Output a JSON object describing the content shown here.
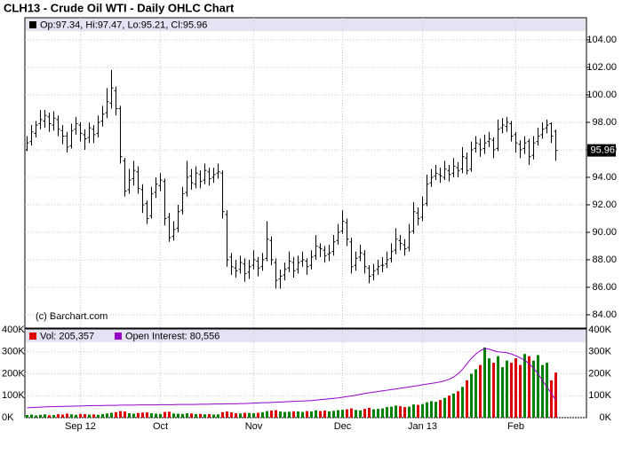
{
  "chart_data": {
    "type": "ohlc",
    "title": "CLH13 - Crude Oil WTI - Daily OHLC Chart",
    "info": "Op:97.34, Hi:97.47, Lo:95.21, Cl:95.96",
    "copyright": "(c) Barchart.com",
    "color": "#000000",
    "grid": true,
    "categories": [
      null,
      null,
      null,
      null,
      null,
      null,
      null,
      null,
      null,
      null,
      null,
      null,
      "Sep 12",
      null,
      null,
      null,
      null,
      null,
      null,
      null,
      null,
      null,
      null,
      null,
      null,
      null,
      null,
      null,
      null,
      null,
      "Oct",
      null,
      null,
      null,
      null,
      null,
      null,
      null,
      null,
      null,
      null,
      null,
      null,
      null,
      null,
      null,
      null,
      null,
      null,
      null,
      null,
      "Nov",
      null,
      null,
      null,
      null,
      null,
      null,
      null,
      null,
      null,
      null,
      null,
      null,
      null,
      null,
      null,
      null,
      null,
      null,
      null,
      "Dec",
      null,
      null,
      null,
      null,
      null,
      null,
      null,
      null,
      null,
      null,
      null,
      null,
      null,
      null,
      null,
      null,
      null,
      "Jan 13",
      null,
      null,
      null,
      null,
      null,
      null,
      null,
      null,
      null,
      null,
      null,
      null,
      null,
      null,
      null,
      null,
      null,
      null,
      null,
      null,
      "Feb",
      null,
      null,
      null,
      null,
      null,
      null,
      null,
      null,
      null
    ],
    "open": [
      96.0,
      96.6,
      97.2,
      97.9,
      98.1,
      98.4,
      97.8,
      98.2,
      97.4,
      97.0,
      96.3,
      97.5,
      97.8,
      97.1,
      96.9,
      97.5,
      97.2,
      98.1,
      98.7,
      99.4,
      100.3,
      99.0,
      95.2,
      93.1,
      93.9,
      94.4,
      93.1,
      92.1,
      91.2,
      92.9,
      93.4,
      93.7,
      91.1,
      89.7,
      90.3,
      91.6,
      92.9,
      94.1,
      93.5,
      94.2,
      93.8,
      94.4,
      94.0,
      94.3,
      94.3,
      91.3,
      88.2,
      87.4,
      87.3,
      87.7,
      87.1,
      87.6,
      87.9,
      87.5,
      88.1,
      89.4,
      87.8,
      86.6,
      86.9,
      87.4,
      87.8,
      87.3,
      87.9,
      87.9,
      87.6,
      88.3,
      88.9,
      88.7,
      88.4,
      88.6,
      89.4,
      90.1,
      90.7,
      89.3,
      87.6,
      88.2,
      88.4,
      87.4,
      86.9,
      87.3,
      87.6,
      87.7,
      88.1,
      88.7,
      89.4,
      89.1,
      88.9,
      90.1,
      91.4,
      91.1,
      92.1,
      93.6,
      94.1,
      94.2,
      94.0,
      94.5,
      94.3,
      94.7,
      94.6,
      95.4,
      94.6,
      96.1,
      96.4,
      96.1,
      96.6,
      96.7,
      96.1,
      97.6,
      97.7,
      97.9,
      97.1,
      96.4,
      96.1,
      96.6,
      95.6,
      96.6,
      97.1,
      97.6,
      97.9,
      97.34
    ],
    "high": [
      97.0,
      97.8,
      98.1,
      98.9,
      98.9,
      98.7,
      98.8,
      98.5,
      97.8,
      97.3,
      97.9,
      98.4,
      98.0,
      97.5,
      98.0,
      97.8,
      98.5,
      99.2,
      100.5,
      101.8,
      100.6,
      99.2,
      95.4,
      94.6,
      95.2,
      94.8,
      93.5,
      92.3,
      93.3,
      94.0,
      94.3,
      93.9,
      91.4,
      90.8,
      92.0,
      93.3,
      95.2,
      94.6,
      94.8,
      94.5,
      95.0,
      94.7,
      94.7,
      95.0,
      94.5,
      91.6,
      88.5,
      88.0,
      88.3,
      88.1,
      88.0,
      88.7,
      88.2,
      88.5,
      90.8,
      89.7,
      88.1,
      87.3,
      87.8,
      88.6,
      88.2,
      88.3,
      88.6,
      88.1,
      88.7,
      89.8,
      89.2,
      89.0,
      89.1,
      89.8,
      90.6,
      91.6,
      91.0,
      89.6,
      88.6,
      89.1,
      88.7,
      87.6,
      87.7,
      88.0,
      88.2,
      88.6,
      89.2,
      90.3,
      89.8,
      89.5,
      90.6,
      92.2,
      91.8,
      92.6,
      94.2,
      94.6,
      94.9,
      94.7,
      95.2,
      94.9,
      95.4,
      95.1,
      96.2,
      95.8,
      96.6,
      97.0,
      96.8,
      97.1,
      97.3,
      96.9,
      98.2,
      98.3,
      98.4,
      98.1,
      97.3,
      96.7,
      97.0,
      96.8,
      97.0,
      97.6,
      98.0,
      98.2,
      98.0,
      97.47
    ],
    "low": [
      95.9,
      96.3,
      96.9,
      97.5,
      97.6,
      97.3,
      97.4,
      97.0,
      96.4,
      95.8,
      96.1,
      97.1,
      96.6,
      96.0,
      96.5,
      96.5,
      96.9,
      97.7,
      98.3,
      99.0,
      98.5,
      95.0,
      92.6,
      92.8,
      93.4,
      92.8,
      91.4,
      90.6,
      91.0,
      92.5,
      93.0,
      90.5,
      89.3,
      89.4,
      90.0,
      91.3,
      92.6,
      93.1,
      93.2,
      93.2,
      93.5,
      93.4,
      93.6,
      93.9,
      91.0,
      87.5,
      86.9,
      86.7,
      87.0,
      86.4,
      86.6,
      87.3,
      86.8,
      87.2,
      87.9,
      87.6,
      85.9,
      85.9,
      86.5,
      87.1,
      86.7,
      87.0,
      87.5,
      86.9,
      87.3,
      88.0,
      88.2,
      87.8,
      87.9,
      88.3,
      89.1,
      89.9,
      89.0,
      87.0,
      87.2,
      87.9,
      87.0,
      86.3,
      86.5,
      86.9,
      87.1,
      87.4,
      87.8,
      88.4,
      88.7,
      88.3,
      88.6,
      89.9,
      90.5,
      90.8,
      91.9,
      93.3,
      93.8,
      93.6,
      93.8,
      93.7,
      94.0,
      94.0,
      94.3,
      94.2,
      94.4,
      95.8,
      95.5,
      95.7,
      96.2,
      95.4,
      95.9,
      97.2,
      97.3,
      96.6,
      95.8,
      95.4,
      95.7,
      94.9,
      95.3,
      96.3,
      96.8,
      97.2,
      96.5,
      95.21
    ],
    "close": [
      96.5,
      97.3,
      97.8,
      98.2,
      98.5,
      97.9,
      98.3,
      97.5,
      97.0,
      96.2,
      97.4,
      97.9,
      97.2,
      96.8,
      97.6,
      97.1,
      98.0,
      98.6,
      99.5,
      100.5,
      99.0,
      95.5,
      93.0,
      93.8,
      94.5,
      93.2,
      92.0,
      91.0,
      92.8,
      93.5,
      93.8,
      91.0,
      89.6,
      90.2,
      91.5,
      92.8,
      94.0,
      93.6,
      94.3,
      93.7,
      94.5,
      93.9,
      94.2,
      94.4,
      91.5,
      88.0,
      87.5,
      87.2,
      87.8,
      87.0,
      87.5,
      88.0,
      87.4,
      88.0,
      89.5,
      88.0,
      86.5,
      86.8,
      87.3,
      87.9,
      87.2,
      87.8,
      88.0,
      87.5,
      88.2,
      89.0,
      88.8,
      88.3,
      88.5,
      89.3,
      90.0,
      90.8,
      89.5,
      87.5,
      88.1,
      88.5,
      87.5,
      86.8,
      87.2,
      87.5,
      87.6,
      88.0,
      88.6,
      89.5,
      89.2,
      88.8,
      90.0,
      91.5,
      91.0,
      92.0,
      93.5,
      94.0,
      94.3,
      94.1,
      94.6,
      94.2,
      94.8,
      94.5,
      95.5,
      94.5,
      96.0,
      96.5,
      96.0,
      96.5,
      96.8,
      96.0,
      97.5,
      97.8,
      98.0,
      97.0,
      96.5,
      96.0,
      96.5,
      95.5,
      96.5,
      97.0,
      97.5,
      97.8,
      97.0,
      95.96
    ],
    "last_price": 95.96,
    "ylim": [
      83.03,
      105.61
    ],
    "yticks": [
      {
        "value": 84,
        "label": "84.00"
      },
      {
        "value": 86,
        "label": "86.00"
      },
      {
        "value": 88,
        "label": "88.00"
      },
      {
        "value": 90,
        "label": "90.00"
      },
      {
        "value": 92,
        "label": "92.00"
      },
      {
        "value": 94,
        "label": "94.00"
      },
      {
        "value": 96,
        "label": "96.00"
      },
      {
        "value": 98,
        "label": "98.00"
      },
      {
        "value": 100,
        "label": "100.00"
      },
      {
        "value": 102,
        "label": "102.00"
      },
      {
        "value": 104,
        "label": "104.00"
      }
    ],
    "volume": {
      "ylim": [
        0,
        400000
      ],
      "yticks": [
        {
          "value": 0,
          "label": "0K"
        },
        {
          "value": 100000,
          "label": "100K"
        },
        {
          "value": 200000,
          "label": "200K"
        },
        {
          "value": 300000,
          "label": "300K"
        },
        {
          "value": 400000,
          "label": "400K"
        }
      ],
      "series": [
        {
          "name": "Vol: 205,357",
          "color": "#dd0000",
          "up_color": "#008000",
          "down_color": "#dd0000",
          "values": [
            12000,
            14000,
            10000,
            13000,
            15000,
            11000,
            12000,
            16000,
            14000,
            18000,
            15000,
            13000,
            17000,
            16000,
            14000,
            15000,
            13000,
            16000,
            19000,
            22000,
            25000,
            30000,
            28000,
            20000,
            18000,
            21000,
            23000,
            24000,
            20000,
            18000,
            17000,
            26000,
            27000,
            19000,
            18000,
            17000,
            20000,
            19000,
            16000,
            17000,
            15000,
            16000,
            14000,
            15000,
            25000,
            28000,
            24000,
            20000,
            19000,
            22000,
            21000,
            20000,
            22000,
            25000,
            30000,
            32000,
            34000,
            28000,
            26000,
            27000,
            29000,
            28000,
            26000,
            30000,
            28000,
            33000,
            30000,
            32000,
            29000,
            31000,
            34000,
            36000,
            38000,
            42000,
            35000,
            33000,
            40000,
            45000,
            38000,
            40000,
            42000,
            48000,
            50000,
            55000,
            52000,
            48000,
            50000,
            60000,
            58000,
            62000,
            70000,
            75000,
            72000,
            80000,
            90000,
            100000,
            110000,
            120000,
            140000,
            170000,
            200000,
            220000,
            240000,
            320000,
            270000,
            250000,
            280000,
            230000,
            260000,
            250000,
            270000,
            240000,
            290000,
            280000,
            260000,
            285000,
            240000,
            250000,
            170000,
            205357
          ]
        },
        {
          "name": "Open Interest: 80,556",
          "color": "#9900cc",
          "values": [
            45000,
            46000,
            47000,
            48000,
            49000,
            50000,
            50000,
            51000,
            51000,
            52000,
            52000,
            53000,
            53000,
            54000,
            54000,
            55000,
            55000,
            55000,
            56000,
            56000,
            56000,
            57000,
            57000,
            57000,
            57000,
            58000,
            58000,
            58000,
            58000,
            58000,
            59000,
            59000,
            59000,
            59000,
            60000,
            60000,
            60000,
            60000,
            60000,
            61000,
            61000,
            61000,
            62000,
            62000,
            62000,
            63000,
            63000,
            63000,
            64000,
            64000,
            65000,
            66000,
            67000,
            68000,
            68000,
            69000,
            70000,
            71000,
            72000,
            73000,
            74000,
            75000,
            76000,
            77000,
            78000,
            80000,
            82000,
            84000,
            86000,
            88000,
            90000,
            93000,
            96000,
            99000,
            102000,
            106000,
            110000,
            113000,
            116000,
            119000,
            122000,
            125000,
            128000,
            131000,
            134000,
            137000,
            140000,
            143000,
            146000,
            150000,
            153000,
            156000,
            159000,
            163000,
            168000,
            175000,
            185000,
            200000,
            220000,
            245000,
            270000,
            290000,
            305000,
            315000,
            312000,
            305000,
            300000,
            298000,
            296000,
            290000,
            282000,
            272000,
            262000,
            245000,
            225000,
            200000,
            170000,
            140000,
            110000,
            80556
          ]
        }
      ]
    }
  }
}
